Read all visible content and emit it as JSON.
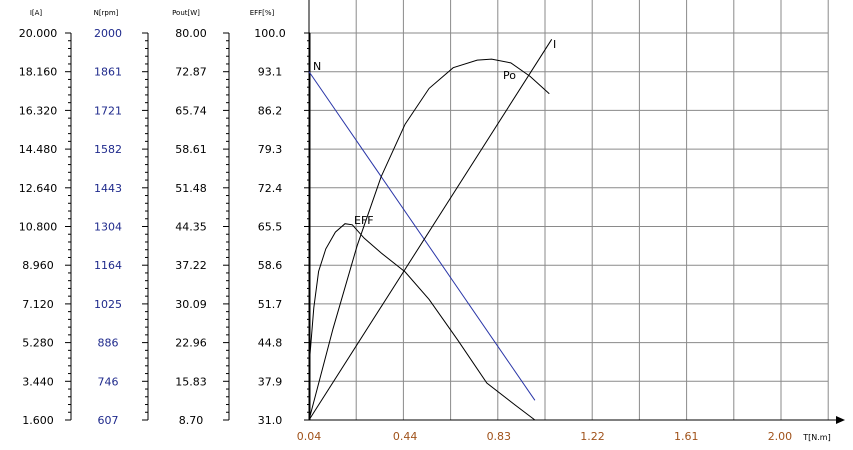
{
  "chart_data": {
    "type": "line",
    "x_axis": {
      "label": "T[N.m]",
      "ticks": [
        "0.04",
        "0.44",
        "0.83",
        "1.22",
        "1.61",
        "2.00"
      ],
      "range": [
        0.04,
        2.2
      ],
      "grid": true,
      "tick_color": "#a0521a"
    },
    "y_axes": [
      {
        "key": "I",
        "title": "I[A]",
        "min": 1.6,
        "max": 20.0,
        "color": "#000000",
        "ticks": [
          "20.000",
          "18.160",
          "16.320",
          "14.480",
          "12.640",
          "10.800",
          "8.960",
          "7.120",
          "5.280",
          "3.440",
          "1.600"
        ]
      },
      {
        "key": "N",
        "title": "N[rpm]",
        "min": 607,
        "max": 2000,
        "color": "#1f2a8c",
        "ticks": [
          "2000",
          "1861",
          "1721",
          "1582",
          "1443",
          "1304",
          "1164",
          "1025",
          "886",
          "746",
          "607"
        ]
      },
      {
        "key": "Pout",
        "title": "Pout[W]",
        "min": 8.7,
        "max": 80.0,
        "color": "#000000",
        "ticks": [
          "80.00",
          "72.87",
          "65.74",
          "58.61",
          "51.48",
          "44.35",
          "37.22",
          "30.09",
          "22.96",
          "15.83",
          "8.70"
        ]
      },
      {
        "key": "EFF",
        "title": "EFF[%]",
        "min": 31.0,
        "max": 100.0,
        "color": "#000000",
        "ticks": [
          "100.0",
          "93.1",
          "86.2",
          "79.3",
          "72.4",
          "65.5",
          "58.6",
          "51.7",
          "44.8",
          "37.9",
          "31.0"
        ]
      }
    ],
    "series": [
      {
        "name": "N",
        "axis": "N",
        "color": "#2a36a8",
        "points": [
          [
            0.04,
            1861
          ],
          [
            0.98,
            678
          ]
        ]
      },
      {
        "name": "I",
        "axis": "I",
        "color": "#000000",
        "points": [
          [
            0.04,
            1.6
          ],
          [
            1.05,
            19.7
          ]
        ]
      },
      {
        "name": "Po",
        "axis": "Pout",
        "color": "#000000",
        "points": [
          [
            0.04,
            8.7
          ],
          [
            0.14,
            25.5
          ],
          [
            0.24,
            40.8
          ],
          [
            0.34,
            53.5
          ],
          [
            0.44,
            63.2
          ],
          [
            0.54,
            69.8
          ],
          [
            0.64,
            73.6
          ],
          [
            0.74,
            75.0
          ],
          [
            0.8,
            75.2
          ],
          [
            0.88,
            74.5
          ],
          [
            0.96,
            72.0
          ],
          [
            1.04,
            68.8
          ]
        ]
      },
      {
        "name": "EFF",
        "axis": "EFF",
        "color": "#000000",
        "points": [
          [
            0.04,
            40.5
          ],
          [
            0.06,
            51.0
          ],
          [
            0.08,
            57.5
          ],
          [
            0.11,
            61.5
          ],
          [
            0.15,
            64.5
          ],
          [
            0.19,
            66.0
          ],
          [
            0.22,
            65.8
          ],
          [
            0.27,
            63.4
          ],
          [
            0.34,
            60.8
          ],
          [
            0.44,
            57.4
          ],
          [
            0.54,
            52.5
          ],
          [
            0.66,
            45.2
          ],
          [
            0.78,
            37.6
          ],
          [
            0.9,
            33.6
          ],
          [
            0.98,
            31.0
          ]
        ]
      }
    ]
  }
}
